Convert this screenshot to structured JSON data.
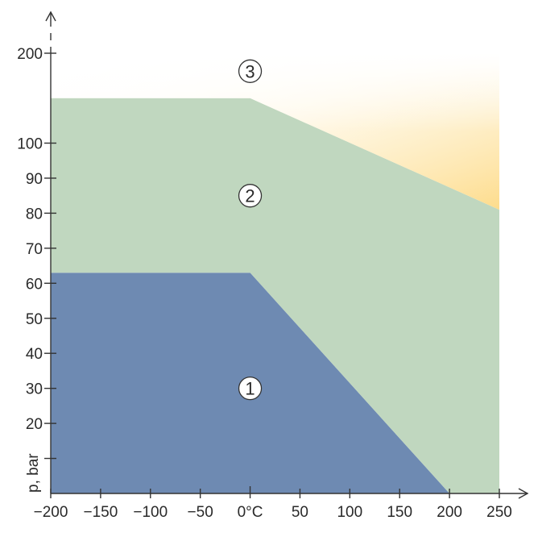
{
  "chart_data": {
    "type": "area",
    "title": "",
    "xlabel": "°C",
    "ylabel": "p, bar",
    "xlim": [
      -200,
      250
    ],
    "y_axis_scale": "piecewise: linear 0–100 in steps of 10, then compressed 100–200",
    "x_ticks": [
      "−200",
      "−150",
      "−100",
      "−50",
      "0°C",
      "50",
      "100",
      "150",
      "200",
      "250"
    ],
    "x_tick_values": [
      -200,
      -150,
      -100,
      -50,
      0,
      50,
      100,
      150,
      200,
      250
    ],
    "y_ticks": [
      "200",
      "100",
      "90",
      "80",
      "70",
      "60",
      "50",
      "40",
      "30",
      "20",
      ""
    ],
    "y_tick_values": [
      200,
      100,
      90,
      80,
      70,
      60,
      50,
      40,
      30,
      20,
      10
    ],
    "y_axis_label": "p, bar",
    "zones": [
      {
        "label": "①",
        "color": "#6e8ab2",
        "boundary": [
          [
            -200,
            63
          ],
          [
            0,
            63
          ],
          [
            200,
            0
          ],
          [
            -200,
            0
          ]
        ]
      },
      {
        "label": "②",
        "color": "#c0d7bf",
        "boundary": [
          [
            -200,
            150
          ],
          [
            0,
            150
          ],
          [
            250,
            81
          ],
          [
            250,
            0
          ],
          [
            200,
            0
          ],
          [
            0,
            63
          ],
          [
            -200,
            63
          ]
        ]
      },
      {
        "label": "③",
        "color": "#fde9a6",
        "boundary": [
          [
            -200,
            200
          ],
          [
            250,
            200
          ],
          [
            250,
            81
          ],
          [
            0,
            150
          ],
          [
            -200,
            150
          ]
        ]
      }
    ],
    "zone_label_positions": [
      {
        "label": "①",
        "x": 0,
        "y": 30
      },
      {
        "label": "②",
        "x": 0,
        "y": 85
      },
      {
        "label": "③",
        "x": 0,
        "y": 180
      }
    ],
    "colors": {
      "zone1": "#6e8ab2",
      "zone2": "#c0d7bf",
      "zone3_edge": "#fde199",
      "axis": "#333333"
    },
    "grid": false,
    "legend": "none"
  }
}
